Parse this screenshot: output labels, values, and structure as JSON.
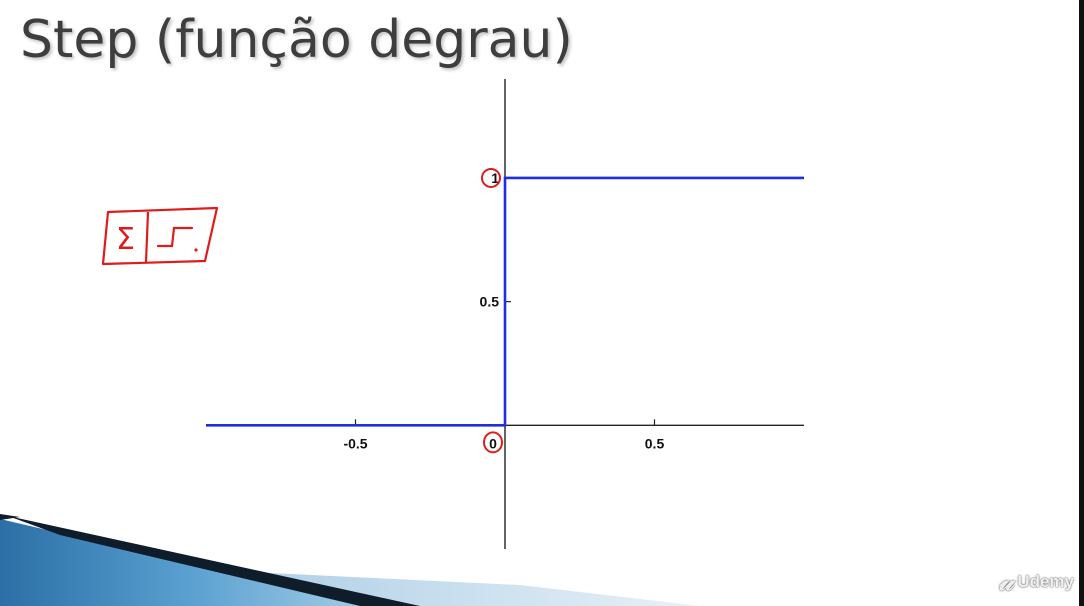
{
  "slide": {
    "title": "Step (função degrau)"
  },
  "chart_data": {
    "type": "line",
    "title": "",
    "xlabel": "",
    "ylabel": "",
    "xlim": [
      -1,
      1
    ],
    "ylim": [
      -0.5,
      1.4
    ],
    "xticks": [
      {
        "value": -0.5,
        "label": "-0.5"
      },
      {
        "value": 0.5,
        "label": "0.5"
      }
    ],
    "yticks": [
      {
        "value": 0.5,
        "label": "0.5"
      },
      {
        "value": 1,
        "label": "1"
      }
    ],
    "origin_label": "0",
    "grid": false,
    "series": [
      {
        "x": [
          -1,
          0,
          0,
          1
        ],
        "y": [
          0,
          0,
          1,
          1
        ],
        "color": "#1f2ee0"
      }
    ],
    "annotations": {
      "color": "#e01b1b",
      "circled_labels": [
        "1",
        "0"
      ],
      "sketch": "summation-and-step-box"
    }
  },
  "watermark": {
    "text": "Udemy",
    "icon": "udemy-logo-icon"
  }
}
